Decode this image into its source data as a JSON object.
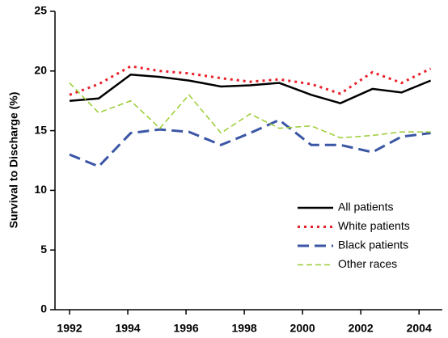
{
  "chart_data": {
    "type": "line",
    "y_label": "Survival to Discharge (%)",
    "x": [
      1992,
      1993,
      1994.1,
      1995.1,
      1996.1,
      1997.2,
      1998.2,
      1999.2,
      2000.3,
      2001.3,
      2002.4,
      2003.4,
      2004.4
    ],
    "xlim": [
      1991.5,
      2004.8
    ],
    "xticks": [
      1992,
      1994,
      1996,
      1998,
      2000,
      2002,
      2004
    ],
    "ylim": [
      0,
      25
    ],
    "yticks": [
      0,
      5,
      10,
      15,
      20,
      25
    ],
    "legend": "lower right",
    "series": [
      {
        "name": "All patients",
        "color": "#000000",
        "dash": "solid",
        "values": [
          17.5,
          17.7,
          19.7,
          19.5,
          19.2,
          18.7,
          18.8,
          19.0,
          18.0,
          17.3,
          18.5,
          18.2,
          19.2
        ]
      },
      {
        "name": "White patients",
        "color": "#e8202a",
        "dash": "dotted",
        "values": [
          18.0,
          18.9,
          20.4,
          20.0,
          19.8,
          19.4,
          19.1,
          19.3,
          18.9,
          18.1,
          19.9,
          19.0,
          20.2
        ]
      },
      {
        "name": "Black patients",
        "color": "#3a56a5",
        "dash": "long-dash",
        "values": [
          13.0,
          12.0,
          14.8,
          15.1,
          14.9,
          13.8,
          14.8,
          15.9,
          13.8,
          13.8,
          13.2,
          14.5,
          14.8
        ]
      },
      {
        "name": "Other races",
        "color": "#9acd32",
        "dash": "dash",
        "values": [
          19.0,
          16.5,
          17.5,
          15.2,
          18.0,
          14.8,
          16.4,
          15.2,
          15.4,
          14.4,
          14.6,
          14.9,
          14.9
        ]
      }
    ]
  }
}
